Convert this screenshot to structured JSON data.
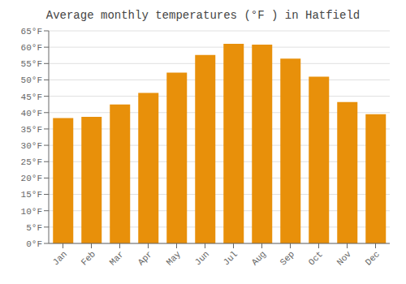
{
  "chart_data": {
    "type": "bar",
    "title": "Average monthly temperatures (°F ) in Hatfield",
    "categories": [
      "Jan",
      "Feb",
      "Mar",
      "Apr",
      "May",
      "Jun",
      "Jul",
      "Aug",
      "Sep",
      "Oct",
      "Nov",
      "Dec"
    ],
    "values": [
      38.3,
      38.7,
      42.5,
      46.0,
      52.2,
      57.6,
      61.0,
      60.8,
      56.5,
      51.0,
      43.2,
      39.5
    ],
    "color": "#E8900A",
    "ylim": [
      0,
      65
    ],
    "yticks": [
      {
        "value": 0,
        "label": "0°F"
      },
      {
        "value": 5,
        "label": "5°F"
      },
      {
        "value": 10,
        "label": "10°F"
      },
      {
        "value": 15,
        "label": "15°F"
      },
      {
        "value": 20,
        "label": "20°F"
      },
      {
        "value": 25,
        "label": "25°F"
      },
      {
        "value": 30,
        "label": "30°F"
      },
      {
        "value": 35,
        "label": "35°F"
      },
      {
        "value": 40,
        "label": "40°F"
      },
      {
        "value": 45,
        "label": "45°F"
      },
      {
        "value": 50,
        "label": "50°F"
      },
      {
        "value": 55,
        "label": "55°F"
      },
      {
        "value": 60,
        "label": "60°F"
      },
      {
        "value": 65,
        "label": "65°F"
      }
    ],
    "grid": true
  }
}
